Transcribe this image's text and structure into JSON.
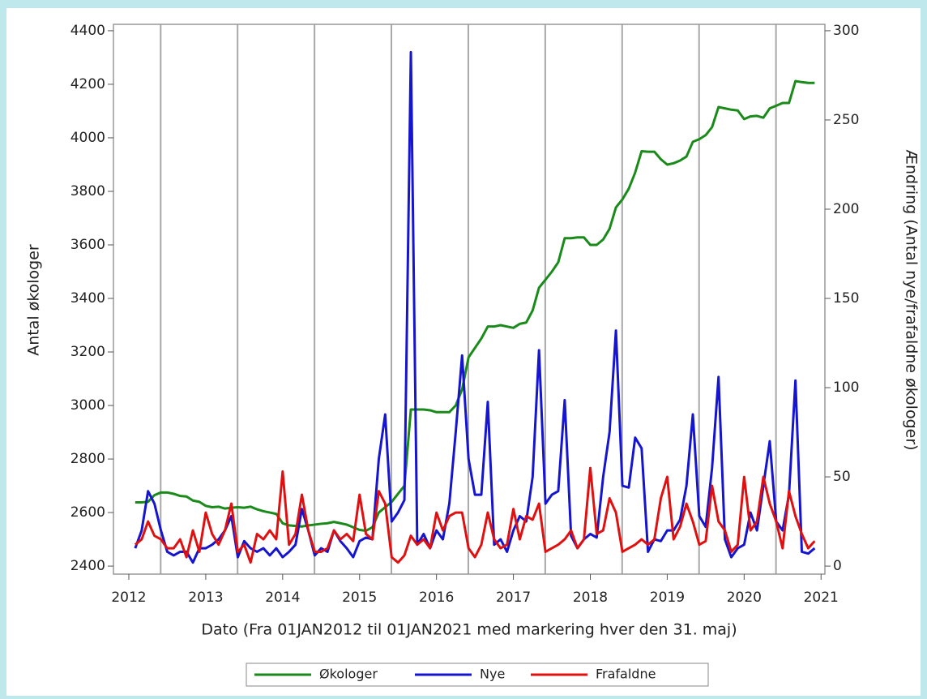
{
  "chart_data": {
    "type": "line",
    "y_label": "Antal økologer",
    "y2_label": "Ændring (Antal nye/frafaldne økologer)",
    "x_label": "Dato (Fra 01JAN2012 til 01JAN2021 med markering hver den 31. maj)",
    "x": [
      2012.083,
      2012.167,
      2012.25,
      2012.333,
      2012.417,
      2012.5,
      2012.583,
      2012.667,
      2012.75,
      2012.833,
      2012.917,
      2013,
      2013.083,
      2013.167,
      2013.25,
      2013.333,
      2013.417,
      2013.5,
      2013.583,
      2013.667,
      2013.75,
      2013.833,
      2013.917,
      2014,
      2014.083,
      2014.167,
      2014.25,
      2014.333,
      2014.417,
      2014.5,
      2014.583,
      2014.667,
      2014.75,
      2014.833,
      2014.917,
      2015,
      2015.083,
      2015.167,
      2015.25,
      2015.333,
      2015.417,
      2015.5,
      2015.583,
      2015.667,
      2015.75,
      2015.833,
      2015.917,
      2016,
      2016.083,
      2016.167,
      2016.25,
      2016.333,
      2016.417,
      2016.5,
      2016.583,
      2016.667,
      2016.75,
      2016.833,
      2016.917,
      2017,
      2017.083,
      2017.167,
      2017.25,
      2017.333,
      2017.417,
      2017.5,
      2017.583,
      2017.667,
      2017.75,
      2017.833,
      2017.917,
      2018,
      2018.083,
      2018.167,
      2018.25,
      2018.333,
      2018.417,
      2018.5,
      2018.583,
      2018.667,
      2018.75,
      2018.833,
      2018.917,
      2019,
      2019.083,
      2019.167,
      2019.25,
      2019.333,
      2019.417,
      2019.5,
      2019.583,
      2019.667,
      2019.75,
      2019.833,
      2019.917,
      2020,
      2020.083,
      2020.167,
      2020.25,
      2020.333,
      2020.417,
      2020.5,
      2020.583,
      2020.667,
      2020.75,
      2020.833,
      2020.917
    ],
    "series": [
      {
        "name": "Økologer",
        "color": "#1a8a1a",
        "axis": "y",
        "values": [
          2638,
          2638,
          2640,
          2665,
          2675,
          2675,
          2670,
          2662,
          2660,
          2645,
          2640,
          2625,
          2620,
          2622,
          2615,
          2618,
          2620,
          2618,
          2622,
          2612,
          2605,
          2600,
          2595,
          2560,
          2552,
          2550,
          2548,
          2552,
          2555,
          2558,
          2560,
          2565,
          2560,
          2555,
          2545,
          2535,
          2532,
          2545,
          2600,
          2620,
          2640,
          2670,
          2700,
          2985,
          2985,
          2985,
          2982,
          2975,
          2975,
          2975,
          3000,
          3060,
          3180,
          3215,
          3250,
          3295,
          3295,
          3300,
          3295,
          3290,
          3305,
          3310,
          3355,
          3440,
          3470,
          3500,
          3535,
          3625,
          3625,
          3628,
          3628,
          3600,
          3600,
          3620,
          3660,
          3740,
          3770,
          3810,
          3870,
          3950,
          3948,
          3948,
          3920,
          3900,
          3905,
          3915,
          3930,
          3985,
          3995,
          4010,
          4040,
          4115,
          4110,
          4105,
          4102,
          4070,
          4080,
          4082,
          4075,
          4110,
          4120,
          4130,
          4130,
          4212,
          4208,
          4205,
          4205
        ]
      },
      {
        "name": "Nye",
        "color": "#1515d0",
        "axis": "y2",
        "values": [
          10,
          20,
          42,
          35,
          20,
          8,
          6,
          8,
          8,
          2,
          10,
          10,
          12,
          15,
          20,
          28,
          5,
          14,
          10,
          8,
          10,
          6,
          10,
          5,
          8,
          12,
          32,
          20,
          6,
          10,
          8,
          20,
          14,
          10,
          5,
          14,
          16,
          15,
          60,
          85,
          25,
          30,
          37,
          288,
          12,
          18,
          10,
          20,
          15,
          35,
          75,
          118,
          60,
          40,
          40,
          92,
          12,
          15,
          8,
          20,
          28,
          25,
          50,
          121,
          35,
          40,
          42,
          93,
          17,
          10,
          15,
          18,
          16,
          50,
          75,
          132,
          45,
          44,
          72,
          66,
          8,
          15,
          14,
          20,
          20,
          26,
          45,
          85,
          28,
          22,
          55,
          106,
          15,
          5,
          10,
          12,
          30,
          20,
          45,
          70,
          25,
          20,
          40,
          104,
          8,
          7,
          10
        ]
      },
      {
        "name": "Frafaldne",
        "color": "#e01010",
        "axis": "y2",
        "values": [
          12,
          15,
          25,
          17,
          15,
          10,
          10,
          15,
          5,
          20,
          8,
          30,
          18,
          12,
          20,
          35,
          8,
          12,
          2,
          18,
          15,
          20,
          15,
          53,
          12,
          18,
          40,
          20,
          8,
          8,
          10,
          20,
          15,
          18,
          14,
          40,
          18,
          15,
          42,
          35,
          5,
          2,
          6,
          17,
          12,
          15,
          10,
          30,
          20,
          28,
          30,
          30,
          10,
          5,
          12,
          30,
          15,
          10,
          12,
          32,
          15,
          28,
          26,
          35,
          8,
          10,
          12,
          15,
          20,
          10,
          15,
          55,
          18,
          20,
          38,
          30,
          8,
          10,
          12,
          15,
          12,
          15,
          38,
          50,
          15,
          22,
          35,
          25,
          12,
          14,
          45,
          25,
          20,
          8,
          12,
          50,
          20,
          25,
          50,
          35,
          25,
          10,
          42,
          28,
          18,
          10,
          14
        ]
      }
    ],
    "reference_lines": [
      2012.414,
      2013.414,
      2014.414,
      2015.414,
      2016.414,
      2017.414,
      2018.414,
      2019.414,
      2020.414
    ],
    "xlim": [
      2011.8,
      2021.05
    ],
    "xticks": [
      2012,
      2013,
      2014,
      2015,
      2016,
      2017,
      2018,
      2019,
      2020,
      2021
    ],
    "ylim": [
      2370,
      4424
    ],
    "yticks": [
      2400,
      2600,
      2800,
      3000,
      3200,
      3400,
      3600,
      3800,
      4000,
      4200,
      4400
    ],
    "y2lim": [
      -4.5,
      303.6
    ],
    "y2ticks": [
      0,
      50,
      100,
      150,
      200,
      250,
      300
    ],
    "legend": "bottom"
  }
}
